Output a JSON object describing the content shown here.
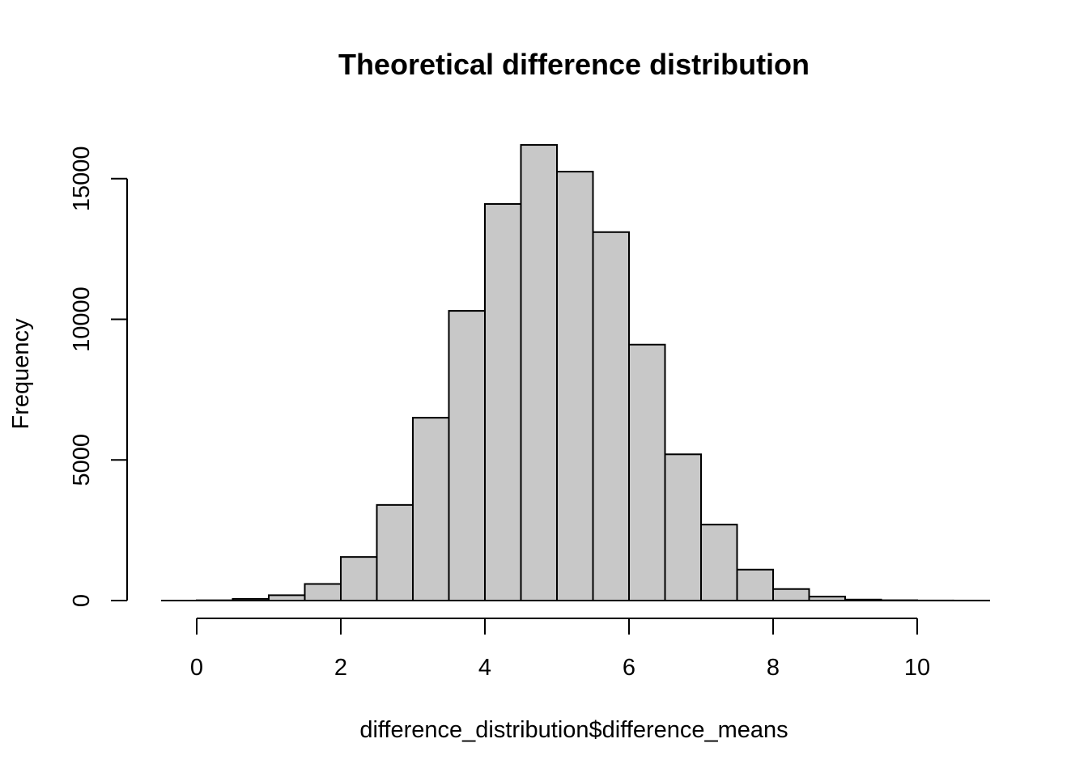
{
  "chart_data": {
    "type": "bar",
    "title": "Theoretical difference distribution",
    "xlabel": "difference_distribution$difference_means",
    "ylabel": "Frequency",
    "bin_width": 0.5,
    "bin_starts": [
      0,
      0.5,
      1,
      1.5,
      2,
      2.5,
      3,
      3.5,
      4,
      4.5,
      5,
      5.5,
      6,
      6.5,
      7,
      7.5,
      8,
      8.5,
      9,
      9.5,
      10,
      10.5
    ],
    "values": [
      10,
      60,
      190,
      590,
      1550,
      3400,
      6500,
      10300,
      14100,
      16200,
      15250,
      13100,
      9100,
      5200,
      2700,
      1100,
      410,
      140,
      35,
      12,
      3,
      1
    ],
    "xlim": [
      -0.5,
      11
    ],
    "ylim": [
      0,
      16200
    ],
    "x_ticks": [
      0,
      2,
      4,
      6,
      8,
      10
    ],
    "x_tick_labels": [
      "0",
      "2",
      "4",
      "6",
      "8",
      "10"
    ],
    "y_ticks": [
      0,
      5000,
      10000,
      15000
    ],
    "y_tick_labels": [
      "0",
      "5000",
      "10000",
      "15000"
    ],
    "grid": false,
    "bar_fill": "#c8c8c8",
    "bar_stroke": "#000000"
  }
}
